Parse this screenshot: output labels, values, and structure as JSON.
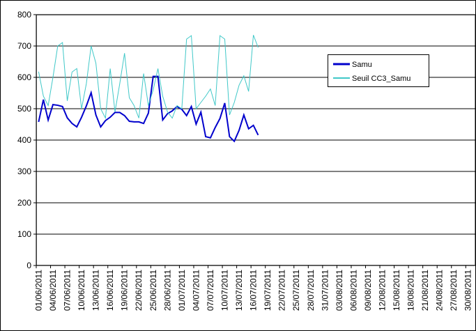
{
  "chart_data": {
    "type": "line",
    "categories": [
      "01/06/2011",
      null,
      null,
      "04/06/2011",
      null,
      null,
      "07/06/2011",
      null,
      null,
      "10/06/2011",
      null,
      null,
      "13/06/2011",
      null,
      null,
      "16/06/2011",
      null,
      null,
      "19/06/2011",
      null,
      null,
      "22/06/2011",
      null,
      null,
      "25/06/2011",
      null,
      null,
      "28/06/2011",
      null,
      null,
      "01/07/2011",
      null,
      null,
      "04/07/2011",
      null,
      null,
      "07/07/2011",
      null,
      null,
      "10/07/2011",
      null,
      null,
      "13/07/2011",
      null,
      null,
      "16/07/2011",
      null,
      null,
      "19/07/2011",
      null,
      null,
      "22/07/2011",
      null,
      null,
      "25/07/2011",
      null,
      null,
      "28/07/2011",
      null,
      null,
      "31/07/2011",
      null,
      null,
      "03/08/2011",
      null,
      null,
      "06/08/2011",
      null,
      null,
      "09/08/2011",
      null,
      null,
      "12/08/2011",
      null,
      null,
      "15/08/2011",
      null,
      null,
      "18/08/2011",
      null,
      null,
      "21/08/2011",
      null,
      null,
      "24/08/2011",
      null,
      null,
      "27/08/2011",
      null,
      null,
      "30/08/2011",
      null
    ],
    "series": [
      {
        "name": "Samu",
        "color": "#0000cc",
        "width": 2,
        "values": [
          458,
          529,
          464,
          513,
          511,
          507,
          471,
          453,
          442,
          473,
          509,
          551,
          480,
          442,
          462,
          473,
          488,
          488,
          478,
          460,
          458,
          458,
          453,
          486,
          603,
          603,
          464,
          484,
          493,
          507,
          498,
          478,
          507,
          451,
          489,
          411,
          407,
          440,
          469,
          518,
          411,
          396,
          431,
          480,
          436,
          447,
          416,
          null,
          null,
          null,
          null,
          null,
          null,
          null,
          null,
          null,
          null,
          null,
          null,
          null,
          null,
          null,
          null,
          null,
          null,
          null,
          null,
          null,
          null,
          null,
          null,
          null,
          null,
          null,
          null,
          null,
          null,
          null,
          null,
          null,
          null,
          null,
          null,
          null,
          null,
          null,
          null,
          null,
          null,
          null,
          null,
          null
        ]
      },
      {
        "name": "Seuil CC3_Samu",
        "color": "#40c8c8",
        "width": 1,
        "values": [
          618,
          540,
          510,
          600,
          700,
          711,
          525,
          617,
          628,
          500,
          580,
          700,
          645,
          500,
          470,
          628,
          490,
          580,
          677,
          535,
          510,
          470,
          612,
          510,
          560,
          628,
          540,
          490,
          470,
          510,
          500,
          722,
          733,
          500,
          520,
          540,
          563,
          510,
          733,
          722,
          480,
          520,
          575,
          605,
          555,
          735,
          695,
          null,
          null,
          null,
          null,
          null,
          null,
          null,
          null,
          null,
          null,
          null,
          null,
          null,
          null,
          null,
          null,
          null,
          null,
          null,
          null,
          null,
          null,
          null,
          null,
          null,
          null,
          null,
          null,
          null,
          null,
          null,
          null,
          null,
          null,
          null,
          null,
          null,
          null,
          null,
          null,
          null,
          null,
          null,
          null,
          null
        ]
      }
    ],
    "ylim": [
      0,
      800
    ],
    "yticks": [
      0,
      100,
      200,
      300,
      400,
      500,
      600,
      700,
      800
    ],
    "grid": true,
    "legend": "right"
  }
}
